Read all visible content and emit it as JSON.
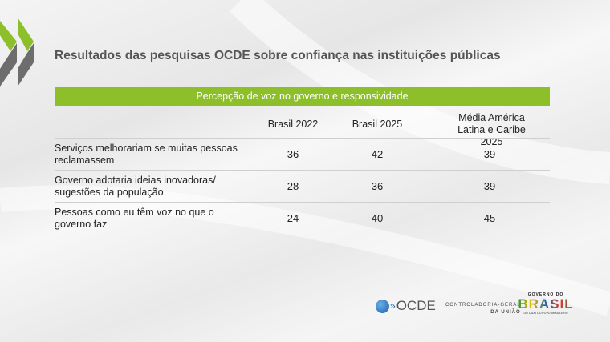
{
  "title": "Resultados das pesquisas OCDE sobre confiança nas instituições públicas",
  "table": {
    "section_header": "Percepção de voz no governo e responsividade",
    "columns": [
      "Brasil 2022",
      "Brasil 2025",
      "Média América Latina e Caribe 2025"
    ],
    "rows": [
      {
        "label": "Serviços melhorariam se muitas pessoas reclamassem",
        "values": [
          "36",
          "42",
          "39"
        ]
      },
      {
        "label": "Governo adotaria ideias inovadoras/ sugestões da população",
        "values": [
          "28",
          "36",
          "39"
        ]
      },
      {
        "label": "Pessoas como eu têm voz no que o governo faz",
        "values": [
          "24",
          "40",
          "45"
        ]
      }
    ]
  },
  "footer": {
    "ocde": "OCDE",
    "cgu_line1": "CONTROLADORIA-GERAL",
    "cgu_line2": "DA UNIÃO",
    "gov_top": "GOVERNO DO",
    "gov_brasil": "BRASIL",
    "gov_bottom": "DO LADO DO POVO BRASILEIRO"
  },
  "colors": {
    "accent": "#8dbf2a",
    "chevron_gray": "#6d6d6d"
  }
}
